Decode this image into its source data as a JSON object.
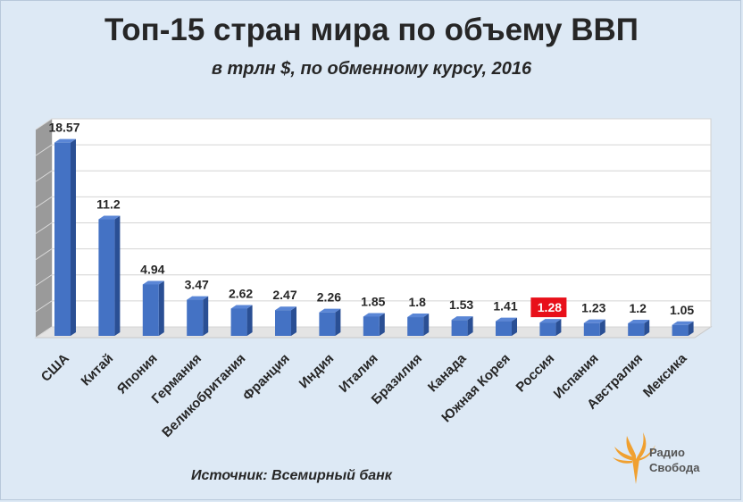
{
  "title": "Топ-15 стран мира по объему ВВП",
  "subtitle": "в трлн $, по обменному курсу, 2016",
  "source": "Источник: Всемирный банк",
  "logo": {
    "line1": "Радио",
    "line2": "Свобода",
    "icon": "radio-svoboda-flame-icon"
  },
  "colors": {
    "bar": "#4472c4",
    "bar_side": "#2a4f94",
    "bar_top": "#5a86d6",
    "highlight": "#e8101a",
    "background": "#dde9f5",
    "logo": "#f0a030"
  },
  "chart_data": {
    "type": "bar",
    "categories": [
      "США",
      "Китай",
      "Япония",
      "Германия",
      "Великобритания",
      "Франция",
      "Индия",
      "Италия",
      "Бразилия",
      "Канада",
      "Южная Корея",
      "Россия",
      "Испания",
      "Австралия",
      "Мексика"
    ],
    "values": [
      18.57,
      11.2,
      4.94,
      3.47,
      2.62,
      2.47,
      2.26,
      1.85,
      1.8,
      1.53,
      1.41,
      1.28,
      1.23,
      1.2,
      1.05
    ],
    "value_labels": [
      "18.57",
      "11.2",
      "4.94",
      "3.47",
      "2.62",
      "2.47",
      "2.26",
      "1.85",
      "1.8",
      "1.53",
      "1.41",
      "1.28",
      "1.23",
      "1.2",
      "1.05"
    ],
    "highlight": "Россия",
    "ylim": [
      0,
      20
    ],
    "grid": true,
    "three_d": true,
    "legend": "none"
  }
}
